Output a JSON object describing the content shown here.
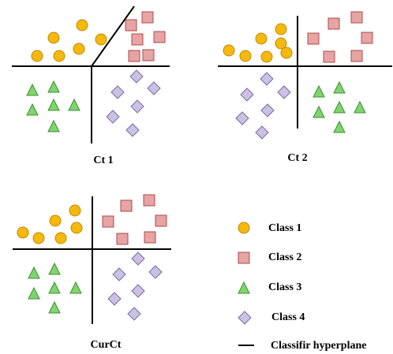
{
  "panels": [
    {
      "label": "Ct 1"
    },
    {
      "label": "Ct 2"
    },
    {
      "label": "CurCt"
    }
  ],
  "legend": {
    "items": [
      "Class 1",
      "Class 2",
      "Class 3",
      "Class 4",
      "Classifir hyperplane"
    ]
  }
}
